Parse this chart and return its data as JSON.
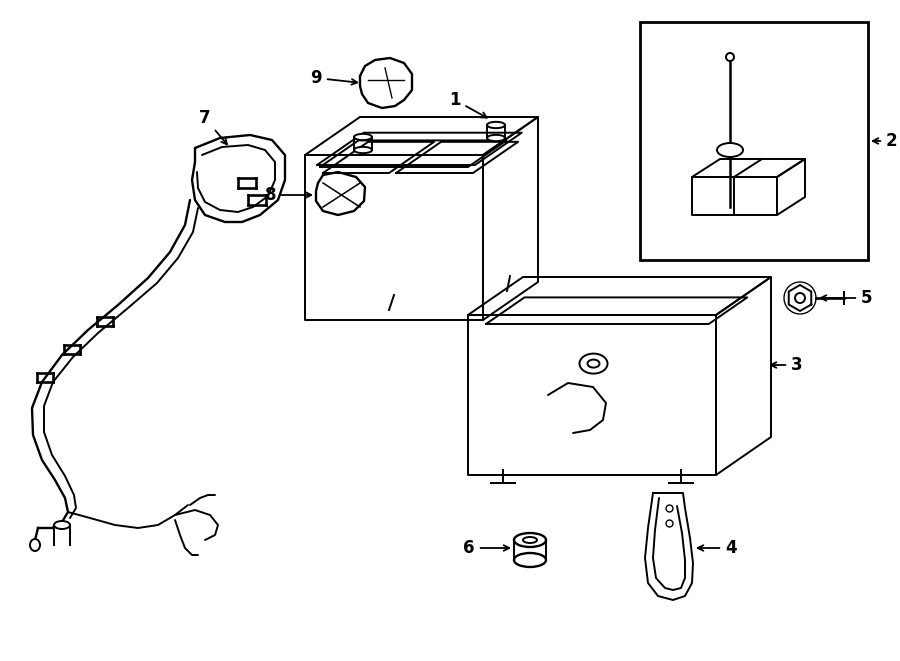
{
  "background_color": "#ffffff",
  "line_color": "#000000",
  "line_width": 1.4,
  "label_fontsize": 12,
  "figsize": [
    9.0,
    6.61
  ],
  "dpi": 100
}
